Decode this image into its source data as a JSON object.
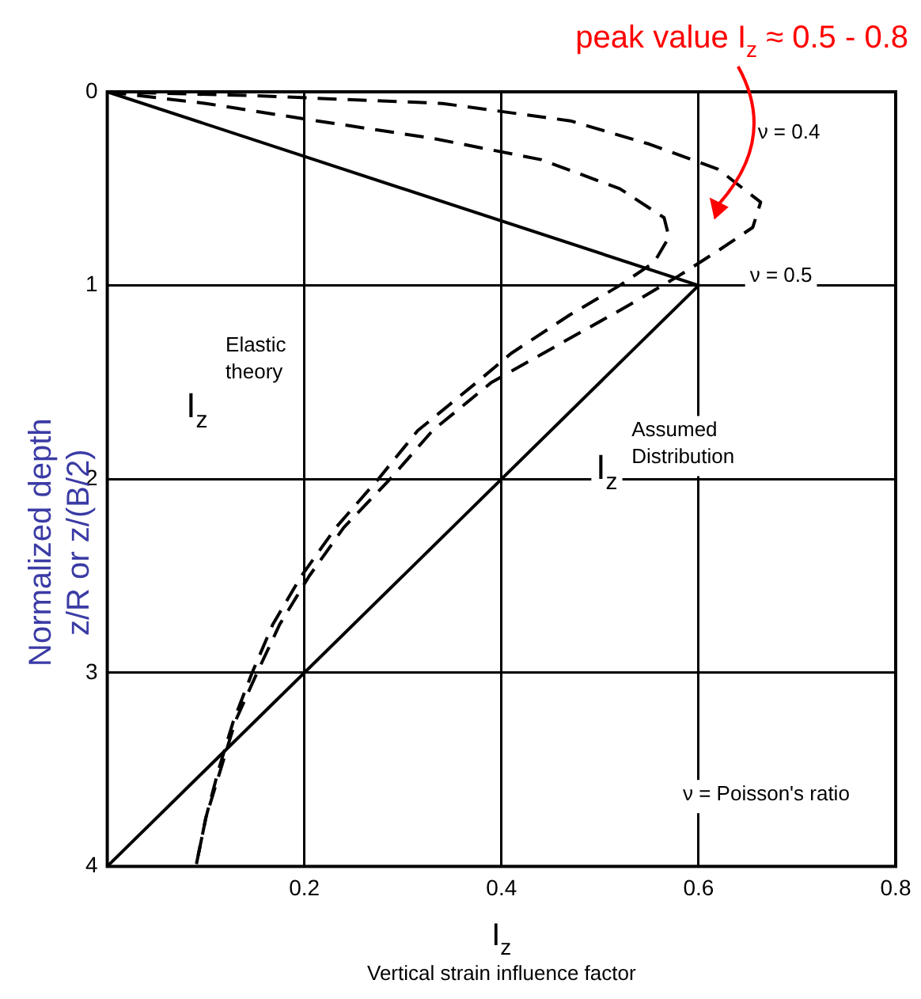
{
  "chart_data": {
    "type": "line",
    "xlabel": "I$_{z}$\nVertical strain influence factor",
    "ylabel": "Normalized depth\nz/R or z/(B/2)",
    "xlim": [
      0,
      0.8
    ],
    "xticks": [
      {
        "value": 0,
        "label": null
      },
      0.2,
      0.4,
      0.6,
      0.8
    ],
    "ylim": [
      4,
      0
    ],
    "yticks": [
      0,
      1,
      2,
      3,
      4
    ],
    "grid": true,
    "legend": false,
    "marker": "none",
    "series": [
      {
        "name": "ν = 0.4",
        "color": "#000000",
        "line_style": "dashed",
        "x": [
          0,
          0.15,
          0.34,
          0.47,
          0.55,
          0.62,
          0.663,
          0.655,
          0.62,
          0.58,
          0.53,
          0.46,
          0.39,
          0.33,
          0.287,
          0.24,
          0.205,
          0.175,
          0.152,
          0.13,
          0.115,
          0.1,
          0.09
        ],
        "values": [
          0,
          0.02,
          0.06,
          0.15,
          0.27,
          0.4,
          0.57,
          0.7,
          0.82,
          0.95,
          1.1,
          1.3,
          1.5,
          1.75,
          2.0,
          2.25,
          2.5,
          2.75,
          3.0,
          3.25,
          3.5,
          3.75,
          4.0
        ]
      },
      {
        "name": "ν = 0.5",
        "color": "#000000",
        "line_style": "dashed",
        "x": [
          0,
          0.1,
          0.2,
          0.33,
          0.44,
          0.52,
          0.565,
          0.57,
          0.555,
          0.52,
          0.47,
          0.41,
          0.375,
          0.315,
          0.275,
          0.232,
          0.197,
          0.168,
          0.147,
          0.128,
          0.113,
          0.1,
          0.09
        ],
        "values": [
          0,
          0.06,
          0.14,
          0.24,
          0.35,
          0.5,
          0.65,
          0.75,
          0.88,
          1.0,
          1.15,
          1.35,
          1.5,
          1.75,
          2.0,
          2.25,
          2.5,
          2.75,
          3.0,
          3.25,
          3.5,
          3.75,
          4.0
        ]
      },
      {
        "color": "#000000",
        "line_style": "solid",
        "x": [
          0,
          0.6,
          0
        ],
        "values": [
          0,
          1,
          4
        ]
      }
    ],
    "annotations": [
      "peak value I$_{z}$ ≈ 0.5 - 0.8",
      "I$_{z}$",
      "Elastic\ntheory",
      "Assumed\nDistribution",
      "I$_{z}$",
      "ν = Poisson's ratio"
    ]
  }
}
